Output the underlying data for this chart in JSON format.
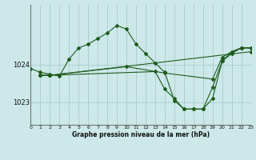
{
  "title": "Graphe pression niveau de la mer (hPa)",
  "bg_color": "#cce8e8",
  "grid_color": "#aacccc",
  "line_color": "#1e5c1e",
  "xlim": [
    0,
    23
  ],
  "ylim": [
    1022.4,
    1025.6
  ],
  "yticks": [
    1023,
    1024
  ],
  "xticks": [
    0,
    1,
    2,
    3,
    4,
    5,
    6,
    7,
    8,
    9,
    10,
    11,
    12,
    13,
    14,
    15,
    16,
    17,
    18,
    19,
    20,
    21,
    22,
    23
  ],
  "lines": [
    {
      "x": [
        0,
        1,
        2,
        3,
        4,
        5,
        6,
        7,
        8,
        9,
        10,
        11,
        12,
        13,
        14,
        15,
        16,
        17,
        18,
        19,
        20,
        21,
        22,
        23
      ],
      "y": [
        1023.9,
        1023.8,
        1023.75,
        1023.7,
        1024.15,
        1024.45,
        1024.55,
        1024.7,
        1024.85,
        1025.05,
        1024.95,
        1024.55,
        1024.3,
        1024.05,
        1023.8,
        1023.05,
        1022.82,
        1022.82,
        1022.82,
        1023.1,
        1024.1,
        1024.3,
        1024.45,
        1024.45
      ]
    },
    {
      "x": [
        1,
        2,
        23
      ],
      "y": [
        1023.72,
        1023.72,
        1024.35
      ]
    },
    {
      "x": [
        1,
        2,
        10,
        14,
        19,
        20,
        21,
        22,
        23
      ],
      "y": [
        1023.72,
        1023.72,
        1023.95,
        1023.78,
        1023.62,
        1024.2,
        1024.35,
        1024.45,
        1024.45
      ]
    },
    {
      "x": [
        1,
        2,
        13,
        14,
        15,
        16,
        17,
        18,
        19,
        20,
        21,
        22,
        23
      ],
      "y": [
        1023.72,
        1023.72,
        1023.82,
        1023.35,
        1023.1,
        1022.82,
        1022.82,
        1022.82,
        1023.4,
        1024.1,
        1024.35,
        1024.45,
        1024.45
      ]
    }
  ]
}
